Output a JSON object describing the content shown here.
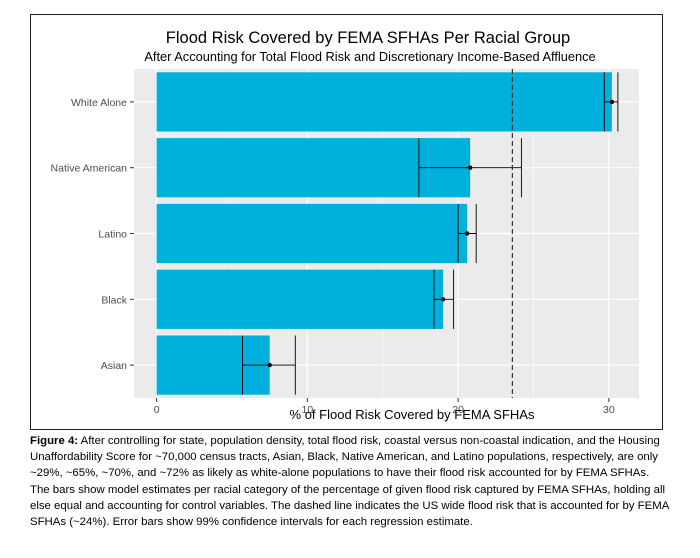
{
  "chart_data": {
    "type": "bar",
    "orientation": "horizontal",
    "title": "Flood Risk Covered by FEMA SFHAs Per Racial Group",
    "subtitle": "After Accounting for Total Flood Risk and Discretionary Income-Based Affluence",
    "xlabel": "% of Flood Risk Covered by FEMA SFHAs",
    "ylabel": "",
    "xlim": [
      -1.5,
      32
    ],
    "xticks": [
      0,
      10,
      20,
      30
    ],
    "categories": [
      "White Alone",
      "Native American",
      "Latino",
      "Black",
      "Asian"
    ],
    "values": [
      30.2,
      20.8,
      20.6,
      19.0,
      7.5
    ],
    "error_low": [
      29.7,
      17.4,
      20.0,
      18.4,
      5.7
    ],
    "error_high": [
      30.6,
      24.2,
      21.2,
      19.7,
      9.2
    ],
    "reference_line": {
      "x": 23.6,
      "style": "dashed"
    },
    "grid": true,
    "colors": {
      "bar": "#00b0dc",
      "panel": "#ebebeb",
      "grid": "#ffffff",
      "error": "#000000",
      "reference": "#333333"
    }
  },
  "caption": {
    "label": "Figure 4:",
    "text": " After controlling for state, population density, total flood risk, coastal versus non-coastal indication, and the Housing Unaffordability Score for ~70,000 census tracts, Asian, Black, Native American, and Latino populations, respectively, are only ~29%, ~65%, ~70%, and ~72% as likely as white-alone populations to have their flood risk accounted for by FEMA SFHAs. The bars show model estimates per racial category of the percentage of given flood risk captured by FEMA SFHAs, holding all else equal and accounting for control variables. The dashed line indicates the US wide flood risk that is accounted for by FEMA SFHAs (~24%). Error bars show 99% confidence intervals for each regression estimate."
  }
}
